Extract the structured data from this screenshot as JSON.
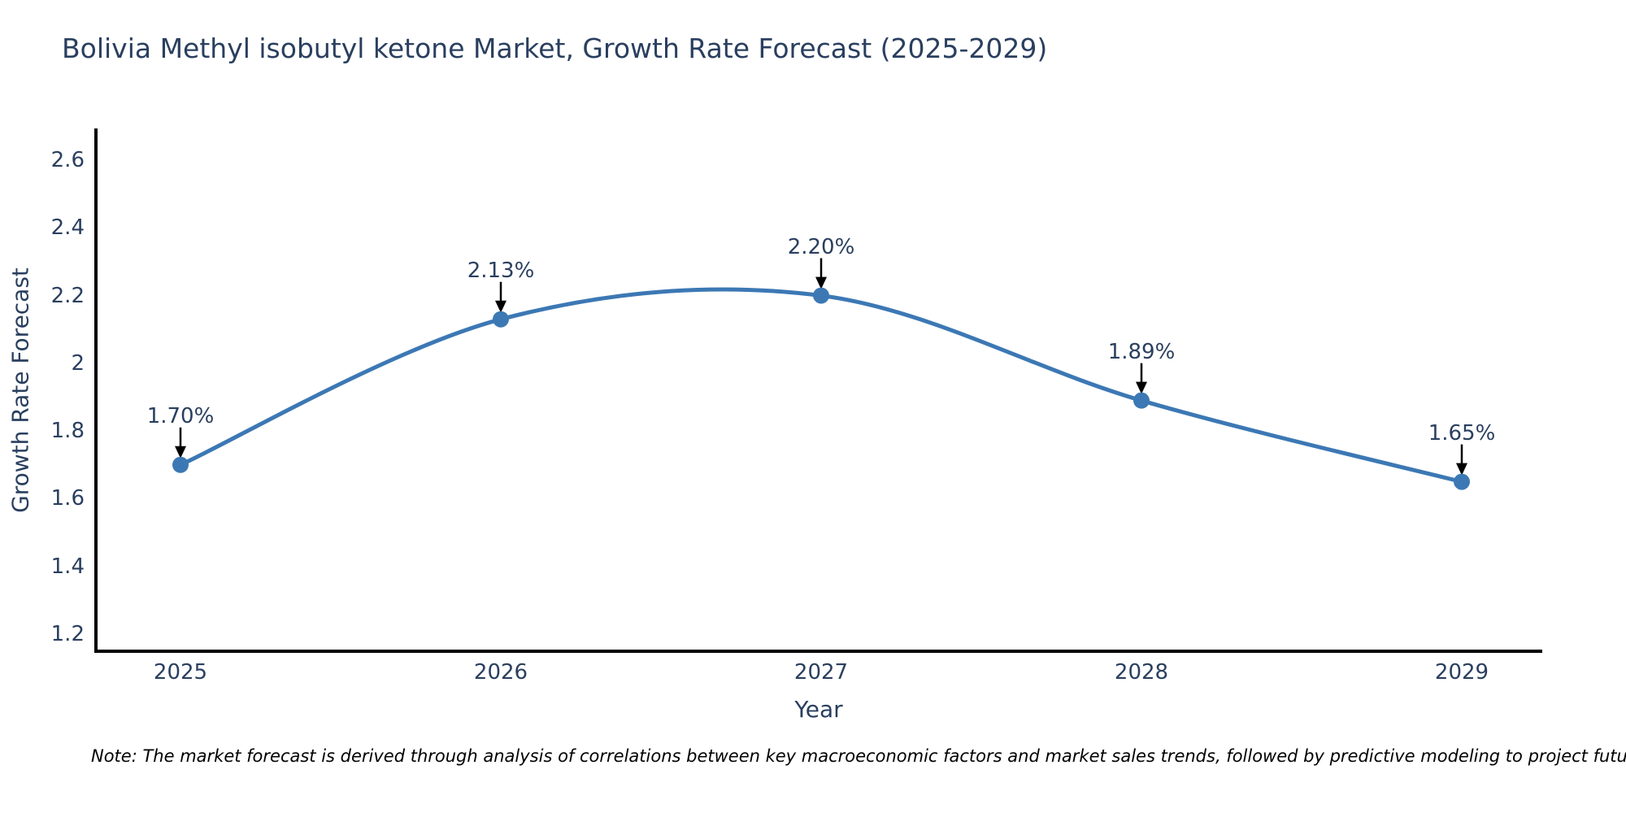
{
  "note": "Note: The market forecast is derived through analysis of correlations between key macroeconomic factors and market sales trends, followed by predictive modeling to project future sales.",
  "colors": {
    "line": "#3C78B4",
    "marker": "#3C78B4",
    "axis": "#000000",
    "text": "#2a3f5f",
    "arrow": "#000000",
    "background": "#ffffff"
  },
  "chart_data": {
    "type": "line",
    "title": "Bolivia Methyl isobutyl ketone Market, Growth Rate Forecast (2025-2029)",
    "xlabel": "Year",
    "ylabel": "Growth Rate Forecast",
    "x": [
      2025,
      2026,
      2027,
      2028,
      2029
    ],
    "y": [
      1.7,
      2.13,
      2.2,
      1.89,
      1.65
    ],
    "series": [
      {
        "name": "Growth Rate Forecast",
        "values": [
          1.7,
          2.13,
          2.2,
          1.89,
          1.65
        ]
      }
    ],
    "point_labels": [
      "1.70%",
      "2.13%",
      "2.20%",
      "1.89%",
      "1.65%"
    ],
    "x_tick_labels": [
      "2025",
      "2026",
      "2027",
      "2028",
      "2029"
    ],
    "y_ticks": [
      1.2,
      1.4,
      1.6,
      1.8,
      2.0,
      2.2,
      2.4,
      2.6
    ],
    "y_tick_labels": [
      "1.2",
      "1.4",
      "1.6",
      "1.8",
      "2",
      "2.2",
      "2.4",
      "2.6"
    ],
    "ylim": [
      1.15,
      2.69
    ],
    "line_shape": "spline",
    "grid": false,
    "legend": "none",
    "annotations_have_arrows": true
  }
}
